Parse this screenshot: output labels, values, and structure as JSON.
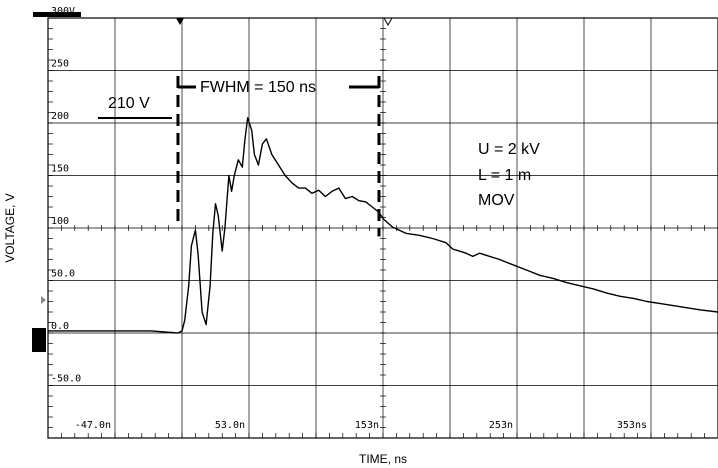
{
  "chart_data": {
    "type": "line",
    "title": "",
    "xlabel": "TIME, ns",
    "ylabel": "VOLTAGE, V",
    "xlim": [
      -97,
      403
    ],
    "ylim": [
      -100,
      300
    ],
    "grid": true,
    "x_ticks": [
      {
        "value": -47,
        "label": "-47.0n"
      },
      {
        "value": 53,
        "label": "53.0n"
      },
      {
        "value": 153,
        "label": "153n"
      },
      {
        "value": 253,
        "label": "253n"
      },
      {
        "value": 353,
        "label": "353ns"
      }
    ],
    "y_ticks": [
      {
        "value": 300,
        "label": "300V"
      },
      {
        "value": 250,
        "label": "250"
      },
      {
        "value": 200,
        "label": "200"
      },
      {
        "value": 150,
        "label": "150"
      },
      {
        "value": 100,
        "label": "100"
      },
      {
        "value": 50,
        "label": "50.0"
      },
      {
        "value": 0,
        "label": "0.0"
      },
      {
        "value": -50,
        "label": "-50.0"
      }
    ],
    "series": [
      {
        "color": "#000000",
        "x": [
          -97,
          -60,
          -20,
          0,
          3,
          5,
          8,
          10,
          13,
          15,
          18,
          21,
          24,
          26,
          28,
          30,
          33,
          35,
          38,
          40,
          42,
          45,
          48,
          50,
          52,
          55,
          57,
          60,
          63,
          66,
          70,
          75,
          80,
          85,
          90,
          95,
          100,
          105,
          110,
          115,
          120,
          125,
          130,
          135,
          140,
          145,
          150,
          153,
          160,
          170,
          180,
          190,
          200,
          205,
          210,
          215,
          220,
          225,
          230,
          240,
          250,
          260,
          270,
          280,
          290,
          300,
          310,
          320,
          330,
          340,
          350,
          360,
          370,
          380,
          390,
          403
        ],
        "y": [
          2,
          2,
          2,
          0,
          2,
          12,
          45,
          83,
          98,
          75,
          20,
          8,
          45,
          95,
          123,
          112,
          78,
          100,
          150,
          135,
          150,
          165,
          158,
          185,
          205,
          193,
          170,
          160,
          180,
          185,
          170,
          160,
          150,
          143,
          138,
          138,
          133,
          136,
          130,
          135,
          138,
          128,
          130,
          126,
          125,
          120,
          115,
          109,
          101,
          95,
          93,
          90,
          86,
          80,
          78,
          76,
          73,
          76,
          74,
          70,
          65,
          60,
          55,
          52,
          48,
          45,
          42,
          38,
          35,
          33,
          30,
          28,
          26,
          24,
          22,
          20
        ]
      }
    ],
    "annotations": {
      "level_label": "210 V",
      "level_value": 210,
      "fwhm_label": "FWHM = 150 ns",
      "fwhm_start": 0,
      "fwhm_end": 150,
      "params": [
        "U = 2 kV",
        "L = 1 m",
        "MOV"
      ]
    }
  }
}
